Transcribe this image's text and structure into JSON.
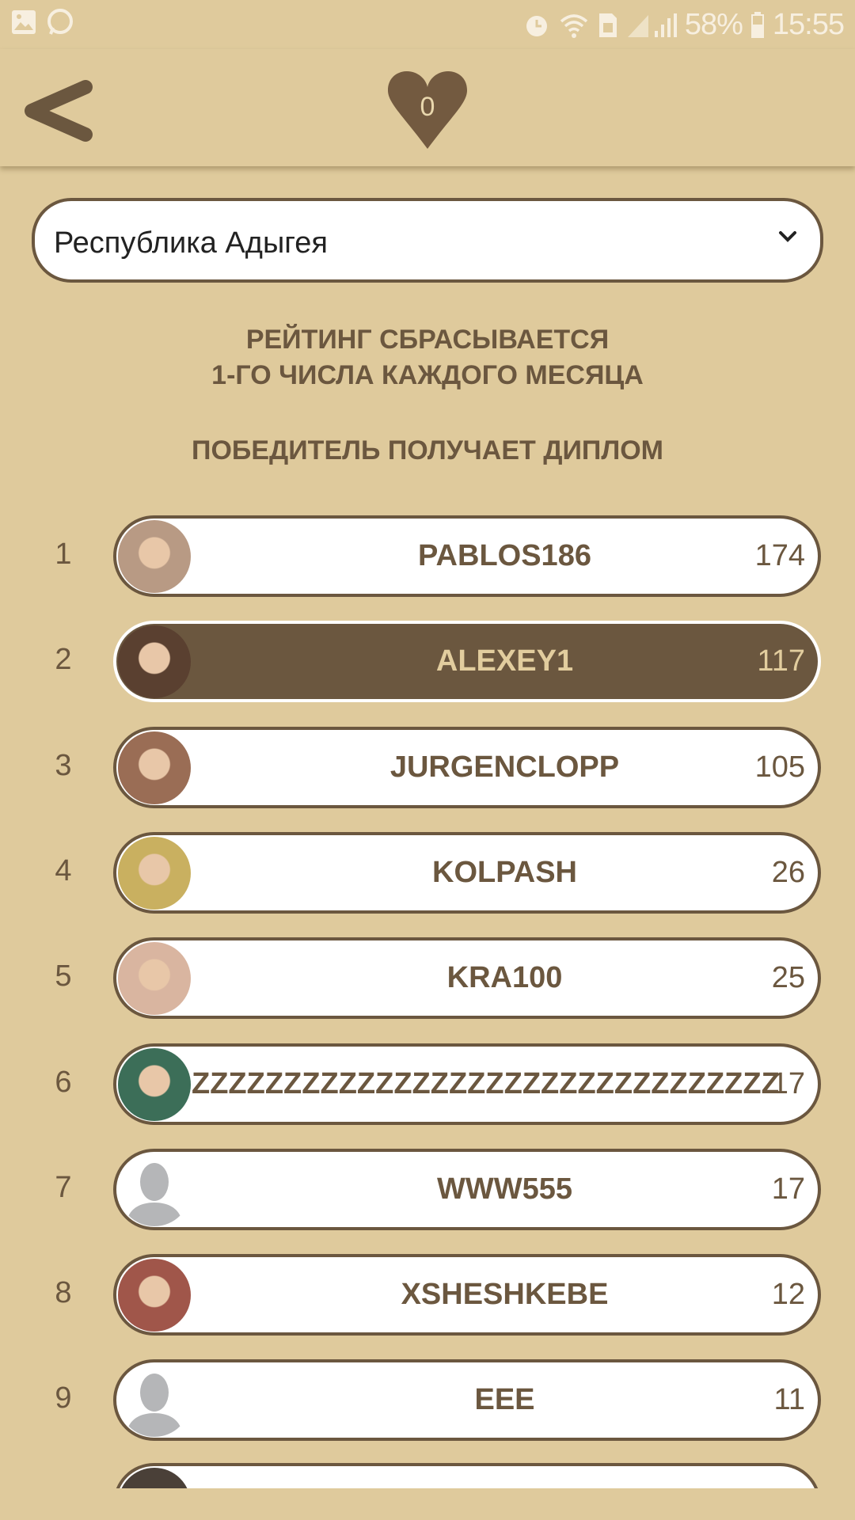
{
  "status_bar": {
    "battery": "58%",
    "time": "15:55",
    "icons": [
      "gallery-icon",
      "whatsapp-icon",
      "alarm-icon",
      "wifi-icon",
      "sim-icon",
      "signal-icon",
      "battery-icon"
    ]
  },
  "header": {
    "likes": "0"
  },
  "region_select": {
    "value": "Республика Адыгея"
  },
  "info": {
    "line1": "РЕЙТИНГ СБРАСЫВАЕТСЯ",
    "line2": "1-ГО ЧИСЛА КАЖДОГО МЕСЯЦА",
    "line3": "ПОБЕДИТЕЛЬ ПОЛУЧАЕТ ДИПЛОМ"
  },
  "colors": {
    "background": "#dfca9c",
    "brown": "#6b573f",
    "selected_text": "#e2cd9e"
  },
  "leaderboard": [
    {
      "rank": "1",
      "name": "PABLOS186",
      "score": "174",
      "avatar": "#b89a84"
    },
    {
      "rank": "2",
      "name": "ALEXEY1",
      "score": "117",
      "avatar": "#5a4030",
      "selected": true
    },
    {
      "rank": "3",
      "name": "JURGENCLOPP",
      "score": "105",
      "avatar": "#9a6d55"
    },
    {
      "rank": "4",
      "name": "KOLPASH",
      "score": "26",
      "avatar": "#c9b060"
    },
    {
      "rank": "5",
      "name": "KRA100",
      "score": "25",
      "avatar": "#d9b5a0"
    },
    {
      "rank": "6",
      "name": "ZZZZZZZZZZZZZZZZZZZZZZZZZZZZZZZZZZZZ",
      "score": "17",
      "avatar": "#3c6e58"
    },
    {
      "rank": "7",
      "name": "WWW555",
      "score": "17",
      "avatar": "default"
    },
    {
      "rank": "8",
      "name": "XSHESHKEBE",
      "score": "12",
      "avatar": "#a0564a"
    },
    {
      "rank": "9",
      "name": "EEE",
      "score": "11",
      "avatar": "default"
    }
  ]
}
